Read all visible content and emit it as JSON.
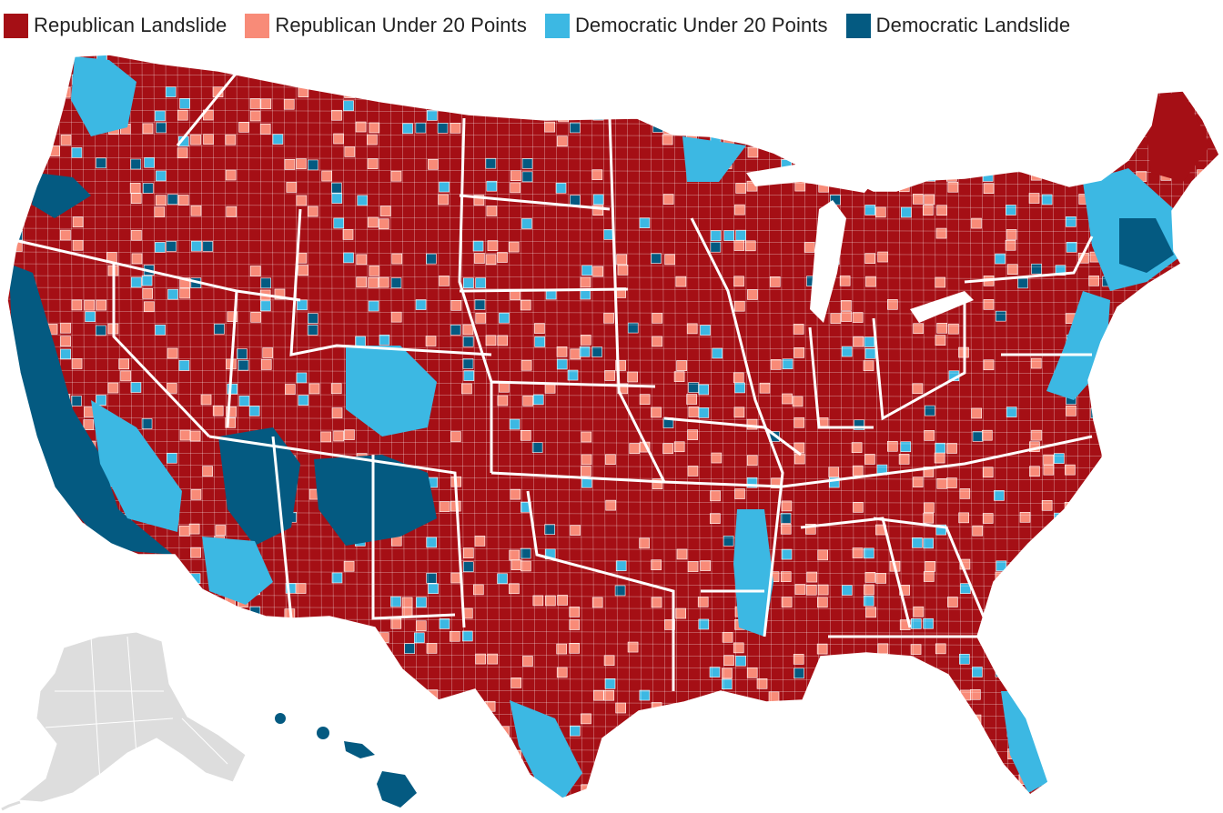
{
  "legend": {
    "items": [
      {
        "label": "Republican Landslide",
        "color": "#a50f15"
      },
      {
        "label": "Republican Under 20 Points",
        "color": "#f88b78"
      },
      {
        "label": "Democratic Under 20 Points",
        "color": "#3cb8e3"
      },
      {
        "label": "Democratic Landslide",
        "color": "#045a81"
      }
    ]
  },
  "map": {
    "subject": "US county-level vote margin map",
    "no_data_color": "#dddddd",
    "border_color": "#ffffff",
    "regions_shown": [
      "contiguous-us",
      "alaska",
      "hawaii"
    ]
  }
}
